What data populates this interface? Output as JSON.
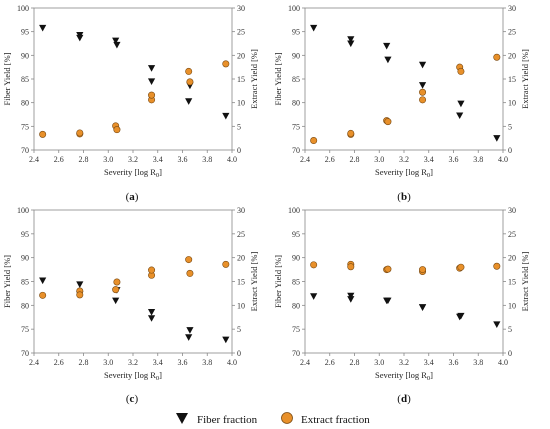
{
  "legend": {
    "fiber_label": "Fiber fraction",
    "extract_label": "Extract fraction"
  },
  "colors": {
    "fiber": "#111111",
    "extract": "#e8902a",
    "extract_edge": "#7a4a12",
    "axis": "#888888"
  },
  "chart_data": [
    {
      "type": "scatter",
      "panel_label": "a",
      "xlabel": "Severity [log R",
      "xlabel_sub": "0",
      "xlabel_end": "]",
      "ylabel": "Fiber Yield [%]",
      "y2label": "Extract Yield [%]",
      "xlim": [
        2.4,
        4.0
      ],
      "ylim": [
        70,
        100
      ],
      "y2lim": [
        0,
        30
      ],
      "xticks": [
        "2.4",
        "2.6",
        "2.8",
        "3.0",
        "3.2",
        "3.4",
        "3.6",
        "3.8",
        "4.0"
      ],
      "yticks": [
        "70",
        "75",
        "80",
        "85",
        "90",
        "95",
        "100"
      ],
      "y2ticks": [
        "0",
        "5",
        "10",
        "15",
        "20",
        "25",
        "30"
      ],
      "series": [
        {
          "name": "Fiber fraction",
          "axis": "left",
          "marker": "triangle-down",
          "x": [
            2.47,
            2.77,
            2.77,
            3.06,
            3.07,
            3.35,
            3.35,
            3.65,
            3.66,
            3.95
          ],
          "y": [
            95.8,
            94.3,
            93.7,
            93.1,
            92.2,
            87.3,
            84.5,
            80.3,
            83.6,
            77.2
          ]
        },
        {
          "name": "Extract fraction",
          "axis": "right",
          "marker": "circle",
          "x": [
            2.47,
            2.77,
            2.77,
            3.06,
            3.07,
            3.35,
            3.35,
            3.65,
            3.66,
            3.95
          ],
          "y": [
            3.3,
            3.4,
            3.6,
            5.1,
            4.3,
            10.6,
            11.6,
            16.6,
            14.4,
            18.2
          ]
        }
      ]
    },
    {
      "type": "scatter",
      "panel_label": "b",
      "xlabel": "Severity [log R",
      "xlabel_sub": "0",
      "xlabel_end": "]",
      "ylabel": "Fiber Yield [%]",
      "y2label": "Extract Yield [%]",
      "xlim": [
        2.4,
        4.0
      ],
      "ylim": [
        70,
        100
      ],
      "y2lim": [
        0,
        30
      ],
      "xticks": [
        "2.4",
        "2.6",
        "2.8",
        "3.0",
        "3.2",
        "3.4",
        "3.6",
        "3.8",
        "4.0"
      ],
      "yticks": [
        "70",
        "75",
        "80",
        "85",
        "90",
        "95",
        "100"
      ],
      "y2ticks": [
        "0",
        "5",
        "10",
        "15",
        "20",
        "25",
        "30"
      ],
      "series": [
        {
          "name": "Fiber fraction",
          "axis": "left",
          "marker": "triangle-down",
          "x": [
            2.47,
            2.77,
            2.77,
            3.06,
            3.07,
            3.35,
            3.35,
            3.65,
            3.66,
            3.95
          ],
          "y": [
            95.8,
            93.4,
            92.5,
            92.0,
            89.1,
            88.0,
            83.7,
            77.3,
            79.8,
            72.5
          ]
        },
        {
          "name": "Extract fraction",
          "axis": "right",
          "marker": "circle",
          "x": [
            2.47,
            2.77,
            2.77,
            3.06,
            3.07,
            3.35,
            3.35,
            3.65,
            3.66,
            3.95
          ],
          "y": [
            2.0,
            3.3,
            3.5,
            6.2,
            6.0,
            12.2,
            10.6,
            17.5,
            16.6,
            19.6
          ]
        }
      ]
    },
    {
      "type": "scatter",
      "panel_label": "c",
      "xlabel": "Severity [log R",
      "xlabel_sub": "0",
      "xlabel_end": "]",
      "ylabel": "Fiber Yield [%]",
      "y2label": "Extract Yield [%]",
      "xlim": [
        2.4,
        4.0
      ],
      "ylim": [
        70,
        100
      ],
      "y2lim": [
        0,
        30
      ],
      "xticks": [
        "2.4",
        "2.6",
        "2.8",
        "3.0",
        "3.2",
        "3.4",
        "3.6",
        "3.8",
        "4.0"
      ],
      "yticks": [
        "70",
        "75",
        "80",
        "85",
        "90",
        "95",
        "100"
      ],
      "y2ticks": [
        "0",
        "5",
        "10",
        "15",
        "20",
        "25",
        "30"
      ],
      "series": [
        {
          "name": "Fiber fraction",
          "axis": "left",
          "marker": "triangle-down",
          "x": [
            2.47,
            2.77,
            2.77,
            3.06,
            3.07,
            3.35,
            3.35,
            3.65,
            3.66,
            3.95
          ],
          "y": [
            85.2,
            84.4,
            82.3,
            81.0,
            83.2,
            78.6,
            77.3,
            73.3,
            74.8,
            72.8
          ]
        },
        {
          "name": "Extract fraction",
          "axis": "right",
          "marker": "circle",
          "x": [
            2.47,
            2.77,
            2.77,
            3.06,
            3.07,
            3.35,
            3.35,
            3.65,
            3.66,
            3.95
          ],
          "y": [
            12.1,
            13.0,
            12.2,
            13.3,
            14.9,
            16.3,
            17.4,
            19.6,
            16.7,
            18.6
          ]
        }
      ]
    },
    {
      "type": "scatter",
      "panel_label": "d",
      "xlabel": "Severity [log R",
      "xlabel_sub": "0",
      "xlabel_end": "]",
      "ylabel": "Fiber Yield [%]",
      "y2label": "Extract Yield [%]",
      "xlim": [
        2.4,
        4.0
      ],
      "ylim": [
        70,
        100
      ],
      "y2lim": [
        0,
        30
      ],
      "xticks": [
        "2.4",
        "2.6",
        "2.8",
        "3.0",
        "3.2",
        "3.4",
        "3.6",
        "3.8",
        "4.0"
      ],
      "yticks": [
        "70",
        "75",
        "80",
        "85",
        "90",
        "95",
        "100"
      ],
      "y2ticks": [
        "0",
        "5",
        "10",
        "15",
        "20",
        "25",
        "30"
      ],
      "series": [
        {
          "name": "Fiber fraction",
          "axis": "left",
          "marker": "triangle-down",
          "x": [
            2.47,
            2.77,
            2.77,
            3.06,
            3.07,
            3.35,
            3.35,
            3.65,
            3.66,
            3.95
          ],
          "y": [
            81.9,
            82.0,
            81.3,
            81.0,
            81.0,
            79.6,
            79.6,
            77.6,
            77.8,
            76.0
          ]
        },
        {
          "name": "Extract fraction",
          "axis": "right",
          "marker": "circle",
          "x": [
            2.47,
            2.77,
            2.77,
            3.06,
            3.07,
            3.35,
            3.35,
            3.65,
            3.66,
            3.95
          ],
          "y": [
            18.5,
            18.6,
            18.1,
            17.5,
            17.6,
            17.1,
            17.5,
            17.8,
            18.0,
            18.2
          ]
        }
      ]
    }
  ]
}
